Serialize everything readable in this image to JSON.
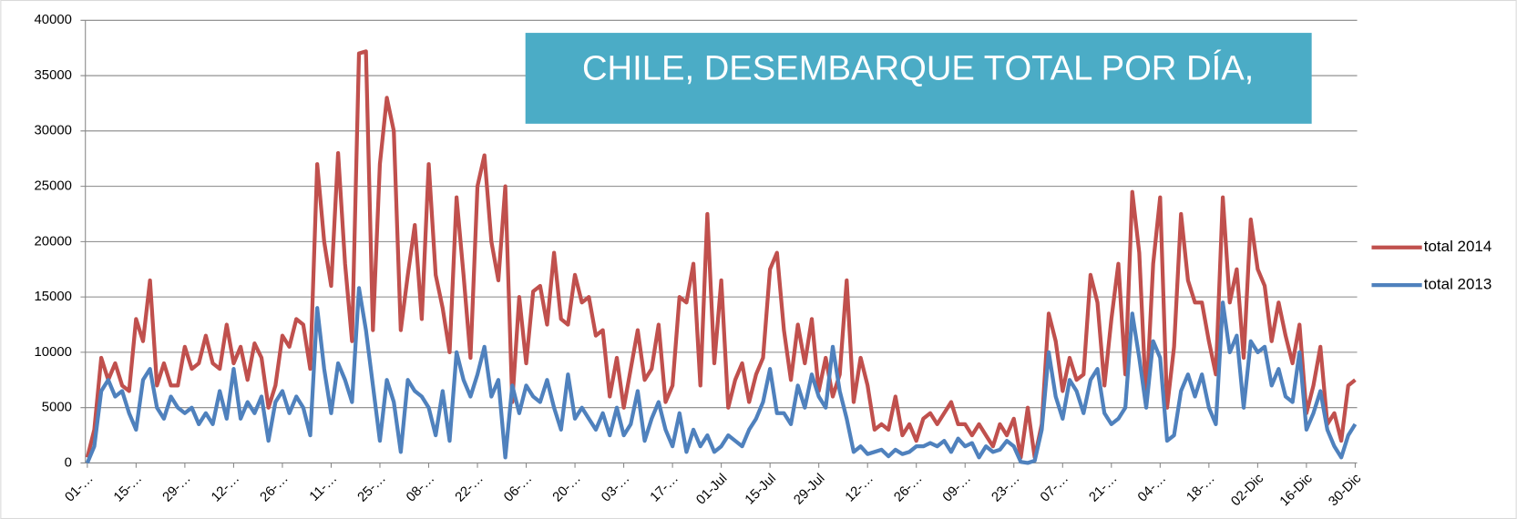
{
  "chart_data": {
    "type": "line",
    "title": "CHILE, DESEMBARQUE TOTAL POR DÍA,",
    "categories": [
      "01-…",
      null,
      null,
      null,
      null,
      null,
      null,
      "15-…",
      null,
      null,
      null,
      null,
      null,
      null,
      "29-…",
      null,
      null,
      null,
      null,
      null,
      null,
      "12-…",
      null,
      null,
      null,
      null,
      null,
      null,
      "26-…",
      null,
      null,
      null,
      null,
      null,
      null,
      "11-…",
      null,
      null,
      null,
      null,
      null,
      null,
      "25-…",
      null,
      null,
      null,
      null,
      null,
      null,
      "08-…",
      null,
      null,
      null,
      null,
      null,
      null,
      "22-…",
      null,
      null,
      null,
      null,
      null,
      null,
      "06-…",
      null,
      null,
      null,
      null,
      null,
      null,
      "20-…",
      null,
      null,
      null,
      null,
      null,
      null,
      "03-…",
      null,
      null,
      null,
      null,
      null,
      null,
      "17-…",
      null,
      null,
      null,
      null,
      null,
      null,
      "01-Jul",
      null,
      null,
      null,
      null,
      null,
      null,
      "15-Jul",
      null,
      null,
      null,
      null,
      null,
      null,
      "29-Jul",
      null,
      null,
      null,
      null,
      null,
      null,
      "12-…",
      null,
      null,
      null,
      null,
      null,
      null,
      "26-…",
      null,
      null,
      null,
      null,
      null,
      null,
      "09-…",
      null,
      null,
      null,
      null,
      null,
      null,
      "23-…",
      null,
      null,
      null,
      null,
      null,
      null,
      "07-…",
      null,
      null,
      null,
      null,
      null,
      null,
      "21-…",
      null,
      null,
      null,
      null,
      null,
      null,
      "04-…",
      null,
      null,
      null,
      null,
      null,
      null,
      "18-…",
      null,
      null,
      null,
      null,
      null,
      null,
      "02-Dic",
      null,
      null,
      null,
      null,
      null,
      null,
      "16-Dic",
      null,
      null,
      null,
      null,
      null,
      null,
      "30-Dic"
    ],
    "series": [
      {
        "name": "total 2014",
        "color": "#c0504d",
        "values": [
          500,
          3000,
          9500,
          7500,
          9000,
          7000,
          6500,
          13000,
          11000,
          16500,
          7000,
          9000,
          7000,
          7000,
          10500,
          8500,
          9000,
          11500,
          9000,
          8500,
          12500,
          9000,
          10500,
          7500,
          10800,
          9500,
          5000,
          7000,
          11500,
          10500,
          13000,
          12500,
          8500,
          27000,
          20000,
          16000,
          28000,
          18000,
          11000,
          37000,
          37200,
          12000,
          27000,
          33000,
          30000,
          12000,
          17000,
          21500,
          13000,
          27000,
          17000,
          14000,
          10000,
          24000,
          17000,
          9500,
          25000,
          27800,
          20000,
          16500,
          25000,
          5500,
          15000,
          9000,
          15500,
          16000,
          12500,
          19000,
          13000,
          12500,
          17000,
          14500,
          15000,
          11500,
          12000,
          6000,
          9500,
          5000,
          8500,
          12000,
          7500,
          8500,
          12500,
          5500,
          7000,
          15000,
          14500,
          18000,
          7000,
          22500,
          9000,
          16500,
          5000,
          7500,
          9000,
          5500,
          8000,
          9500,
          17500,
          19000,
          12000,
          7500,
          12500,
          9000,
          13000,
          6500,
          9500,
          6000,
          8000,
          16500,
          5500,
          9500,
          7000,
          3000,
          3500,
          3000,
          6000,
          2500,
          3500,
          2000,
          4000,
          4500,
          3500,
          4500,
          5500,
          3500,
          3500,
          2500,
          3500,
          2500,
          1500,
          3500,
          2500,
          4000,
          500,
          5000,
          500,
          3500,
          13500,
          11000,
          6500,
          9500,
          7500,
          8000,
          17000,
          14500,
          7000,
          13000,
          18000,
          8000,
          24500,
          19000,
          5500,
          18000,
          24000,
          5000,
          10500,
          22500,
          16500,
          14500,
          14500,
          11000,
          8000,
          24000,
          14500,
          17500,
          9500,
          22000,
          17500,
          16000,
          11000,
          14500,
          11500,
          9000,
          12500,
          4500,
          7000,
          10500,
          3500,
          4500,
          2000,
          7000,
          7500
        ]
      },
      {
        "name": "total 2013",
        "color": "#4f81bd",
        "values": [
          0,
          1500,
          6500,
          7500,
          6000,
          6500,
          4500,
          3000,
          7500,
          8500,
          5000,
          4000,
          6000,
          5000,
          4500,
          5000,
          3500,
          4500,
          3500,
          6500,
          4000,
          8500,
          4000,
          5500,
          4500,
          6000,
          2000,
          5500,
          6500,
          4500,
          6000,
          5000,
          2500,
          14000,
          8500,
          4500,
          9000,
          7500,
          5500,
          15800,
          12000,
          7000,
          2000,
          7500,
          5500,
          1000,
          7500,
          6500,
          6000,
          5000,
          2500,
          6500,
          2000,
          10000,
          7500,
          6000,
          8000,
          10500,
          6000,
          7500,
          500,
          7000,
          4500,
          7000,
          6000,
          5500,
          7500,
          5000,
          3000,
          8000,
          4000,
          5000,
          4000,
          3000,
          4500,
          2500,
          5000,
          2500,
          3500,
          6500,
          2000,
          4000,
          5500,
          3000,
          1500,
          4500,
          1000,
          3000,
          1500,
          2500,
          1000,
          1500,
          2500,
          2000,
          1500,
          3000,
          4000,
          5500,
          8500,
          4500,
          4500,
          3500,
          7000,
          5000,
          8000,
          6000,
          5000,
          10500,
          6500,
          4000,
          1000,
          1500,
          800,
          1000,
          1200,
          600,
          1200,
          800,
          1000,
          1500,
          1500,
          1800,
          1500,
          2000,
          1000,
          2200,
          1500,
          1800,
          500,
          1500,
          1000,
          1200,
          2000,
          1500,
          100,
          0,
          200,
          3000,
          10000,
          6000,
          4000,
          7500,
          6500,
          4500,
          7500,
          8500,
          4500,
          3500,
          4000,
          5000,
          13500,
          9500,
          5000,
          11000,
          9500,
          2000,
          2500,
          6500,
          8000,
          6000,
          8000,
          5000,
          3500,
          14500,
          10000,
          11500,
          5000,
          11000,
          10000,
          10500,
          7000,
          8500,
          6000,
          5500,
          10000,
          3000,
          4500,
          6500,
          3000,
          1500,
          500,
          2500,
          3500
        ]
      }
    ],
    "ylim": [
      0,
      40000
    ],
    "yticks": [
      0,
      5000,
      10000,
      15000,
      20000,
      25000,
      30000,
      35000,
      40000
    ],
    "grid": true,
    "legend": "right"
  }
}
